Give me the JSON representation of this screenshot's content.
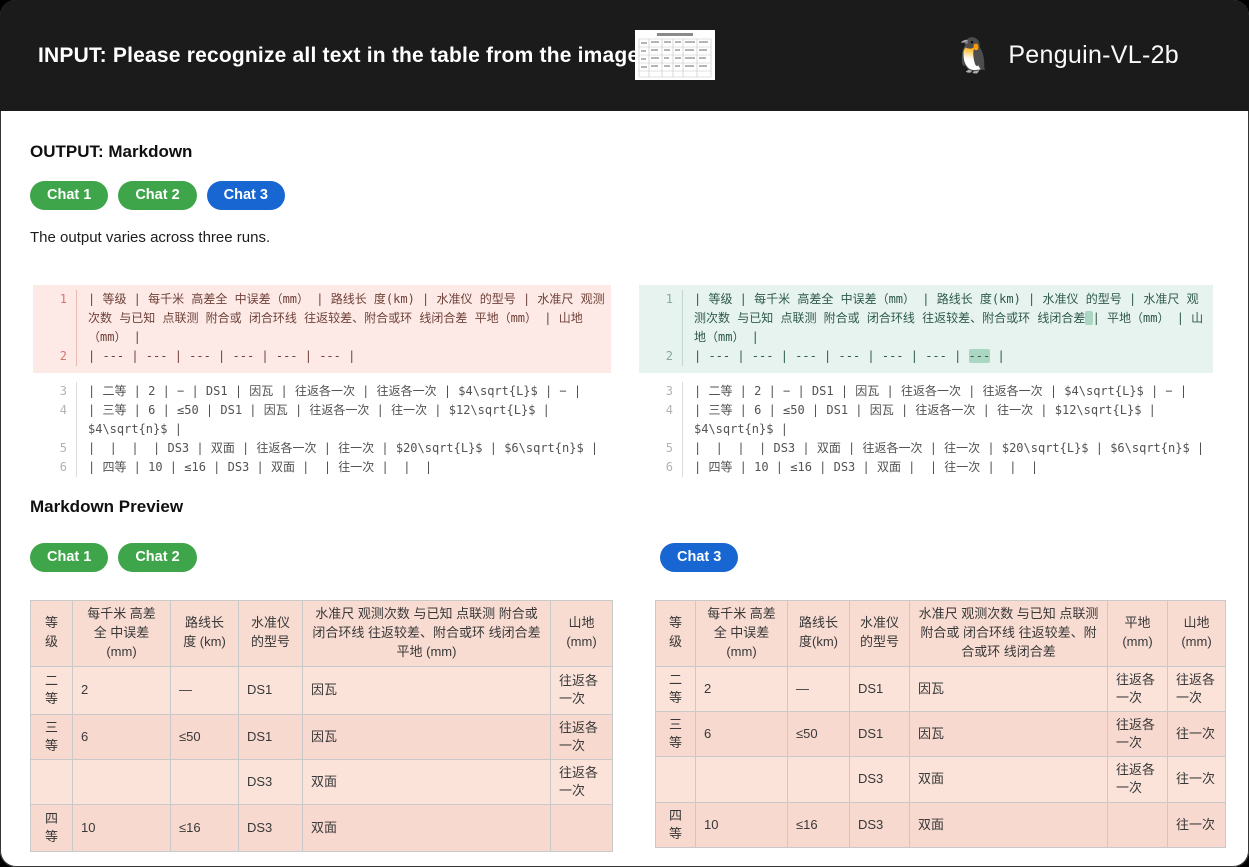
{
  "header": {
    "input_label": "INPUT: Please recognize all text in the table from the image.",
    "model_name": "Penguin-VL-2b",
    "penguin_icon": "🐧"
  },
  "output_section": {
    "title": "OUTPUT: Markdown",
    "tabs": [
      {
        "label": "Chat 1",
        "color": "#3fa54b"
      },
      {
        "label": "Chat 2",
        "color": "#3fa54b"
      },
      {
        "label": "Chat 3",
        "color": "#1766d1"
      }
    ],
    "note": "The output varies across three runs.",
    "code_blocks": [
      {
        "id": "chat-1-2",
        "diff_style": "del",
        "lines": [
          {
            "num": 1,
            "state": "del",
            "segments": [
              {
                "t": "| 等级 | 每千米 高差全 中误差（mm） | 路线长 度(km) | 水准仪 的型号 | 水准尺 观测次数 与已知 点联测 附合或 闭合环线 往返较差、附合或环 线闭合差 平地（mm） | 山地（mm） |"
              }
            ]
          },
          {
            "num": 2,
            "state": "del",
            "segments": [
              {
                "t": "| --- | --- | --- | --- | --- | --- |"
              }
            ]
          },
          {
            "num": 3,
            "state": "",
            "segments": [
              {
                "t": "| 二等 | 2 | − | DS1 | 因瓦 | 往返各一次 | 往返各一次 | $4\\sqrt{L}$ | − |"
              }
            ]
          },
          {
            "num": 4,
            "state": "",
            "segments": [
              {
                "t": "| 三等 | 6 | ≤50 | DS1 | 因瓦 | 往返各一次 | 往一次 | $12\\sqrt{L}$ | $4\\sqrt{n}$ |"
              }
            ]
          },
          {
            "num": 5,
            "state": "",
            "segments": [
              {
                "t": "|  |  |  | DS3 | 双面 | 往返各一次 | 往一次 | $20\\sqrt{L}$ | $6\\sqrt{n}$ |"
              }
            ]
          },
          {
            "num": 6,
            "state": "",
            "segments": [
              {
                "t": "| 四等 | 10 | ≤16 | DS3 | 双面 |  | 往一次 |  |  |"
              }
            ]
          }
        ]
      },
      {
        "id": "chat-3",
        "diff_style": "ins",
        "lines": [
          {
            "num": 1,
            "state": "ins",
            "segments": [
              {
                "t": "| 等级 | 每千米 高差全 中误差（mm） | 路线长 度(km) | 水准仪 的型号 | 水准尺 观测次数 与已知 点联测 附合或 闭合环线 往返较差、附合或环 线闭合差"
              },
              {
                "t": " ",
                "hl": true
              },
              {
                "t": "| 平地（mm） | 山地（mm） |"
              }
            ]
          },
          {
            "num": 2,
            "state": "ins",
            "segments": [
              {
                "t": "| --- | --- | --- | --- | --- | --- | "
              },
              {
                "t": "---",
                "hl": true
              },
              {
                "t": " |"
              }
            ]
          },
          {
            "num": 3,
            "state": "",
            "segments": [
              {
                "t": "| 二等 | 2 | − | DS1 | 因瓦 | 往返各一次 | 往返各一次 | $4\\sqrt{L}$ | − |"
              }
            ]
          },
          {
            "num": 4,
            "state": "",
            "segments": [
              {
                "t": "| 三等 | 6 | ≤50 | DS1 | 因瓦 | 往返各一次 | 往一次 | $12\\sqrt{L}$ | $4\\sqrt{n}$ |"
              }
            ]
          },
          {
            "num": 5,
            "state": "",
            "segments": [
              {
                "t": "|  |  |  | DS3 | 双面 | 往返各一次 | 往一次 | $20\\sqrt{L}$ | $6\\sqrt{n}$ |"
              }
            ]
          },
          {
            "num": 6,
            "state": "",
            "segments": [
              {
                "t": "| 四等 | 10 | ≤16 | DS3 | 双面 |  | 往一次 |  |  |"
              }
            ]
          }
        ]
      }
    ]
  },
  "preview_section": {
    "title": "Markdown Preview",
    "left_tabs": [
      {
        "label": "Chat 1"
      },
      {
        "label": "Chat 2"
      }
    ],
    "right_tabs": [
      {
        "label": "Chat 3"
      }
    ],
    "left_table": {
      "headers": [
        "等级",
        "每千米 高差全 中误差 (mm)",
        "路线长 度 (km)",
        "水准仪 的型号",
        "水准尺 观测次数 与已知 点联测 附合或 闭合环线 往返较差、附合或环 线闭合差 平地 (mm)",
        "山地 (mm)"
      ],
      "rows": [
        [
          "二等",
          "2",
          "—",
          "DS1",
          "因瓦",
          "往返各一次"
        ],
        [
          "三等",
          "6",
          "≤50",
          "DS1",
          "因瓦",
          "往返各一次"
        ],
        [
          "",
          "",
          "",
          "DS3",
          "双面",
          "往返各一次"
        ],
        [
          "四等",
          "10",
          "≤16",
          "DS3",
          "双面",
          ""
        ]
      ]
    },
    "right_table": {
      "headers": [
        "等级",
        "每千米 高差全 中误差 (mm)",
        "路线长 度(km)",
        "水准仪 的型号",
        "水准尺 观测次数 与已知 点联测 附合或 闭合环线 往返较差、附合或环 线闭合差",
        "平地 (mm)",
        "山地 (mm)"
      ],
      "rows": [
        [
          "二等",
          "2",
          "—",
          "DS1",
          "因瓦",
          "往返各一次",
          "往返各一次"
        ],
        [
          "三等",
          "6",
          "≤50",
          "DS1",
          "因瓦",
          "往返各一次",
          "往一次"
        ],
        [
          "",
          "",
          "",
          "DS3",
          "双面",
          "往返各一次",
          "往一次"
        ],
        [
          "四等",
          "10",
          "≤16",
          "DS3",
          "双面",
          "",
          "往一次"
        ]
      ]
    }
  },
  "colors": {
    "header_bg": "#1b1b1b",
    "green_pill": "#3fa54b",
    "blue_pill": "#1766d1",
    "diff_del_bg": "#fdeae7",
    "diff_ins_bg": "#e7f3ee",
    "diff_ins_highlight": "#abd7c2",
    "table_cell_bg": "#f9ddd3"
  }
}
